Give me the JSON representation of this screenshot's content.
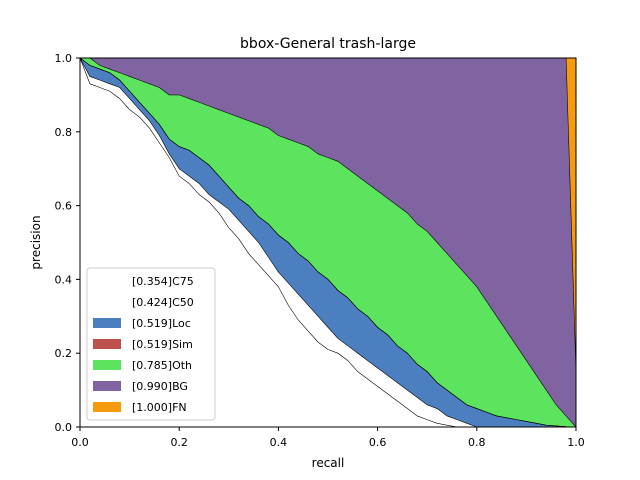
{
  "chart_data": {
    "type": "area",
    "title": "bbox-General trash-large",
    "xlabel": "recall",
    "ylabel": "precision",
    "xlim": [
      0,
      1
    ],
    "ylim": [
      0,
      1
    ],
    "xticks": [
      "0.0",
      "0.2",
      "0.4",
      "0.6",
      "0.8",
      "1.0"
    ],
    "yticks": [
      "0.0",
      "0.2",
      "0.4",
      "0.6",
      "0.8",
      "1.0"
    ],
    "grid": false,
    "legend_position": "lower-left",
    "x": [
      0.0,
      0.02,
      0.04,
      0.06,
      0.08,
      0.1,
      0.12,
      0.14,
      0.16,
      0.18,
      0.2,
      0.22,
      0.24,
      0.26,
      0.28,
      0.3,
      0.32,
      0.34,
      0.36,
      0.38,
      0.4,
      0.42,
      0.44,
      0.46,
      0.48,
      0.5,
      0.52,
      0.54,
      0.56,
      0.58,
      0.6,
      0.62,
      0.64,
      0.66,
      0.68,
      0.7,
      0.72,
      0.74,
      0.76,
      0.78,
      0.8,
      0.82,
      0.84,
      0.86,
      0.88,
      0.9,
      0.92,
      0.94,
      0.96,
      0.98,
      1.0
    ],
    "series": [
      {
        "name": "[0.354]C75",
        "color": "#ffffff",
        "values": [
          1.0,
          0.93,
          0.92,
          0.91,
          0.89,
          0.86,
          0.84,
          0.81,
          0.77,
          0.73,
          0.68,
          0.66,
          0.63,
          0.61,
          0.58,
          0.54,
          0.51,
          0.47,
          0.44,
          0.41,
          0.38,
          0.33,
          0.29,
          0.26,
          0.23,
          0.21,
          0.2,
          0.18,
          0.15,
          0.13,
          0.11,
          0.09,
          0.07,
          0.05,
          0.03,
          0.02,
          0.01,
          0.005,
          0.0,
          0.0,
          0.0,
          0.0,
          0.0,
          0.0,
          0.0,
          0.0,
          0.0,
          0.0,
          0.0,
          0.0,
          0.0
        ]
      },
      {
        "name": "[0.424]C50",
        "color": "#ffffff",
        "values": [
          1.0,
          0.95,
          0.94,
          0.93,
          0.92,
          0.89,
          0.86,
          0.83,
          0.79,
          0.74,
          0.7,
          0.68,
          0.66,
          0.63,
          0.61,
          0.59,
          0.56,
          0.53,
          0.5,
          0.46,
          0.42,
          0.39,
          0.36,
          0.33,
          0.3,
          0.27,
          0.24,
          0.22,
          0.2,
          0.18,
          0.16,
          0.14,
          0.12,
          0.1,
          0.08,
          0.06,
          0.05,
          0.03,
          0.02,
          0.01,
          0.0,
          0.0,
          0.0,
          0.0,
          0.0,
          0.0,
          0.0,
          0.0,
          0.0,
          0.0,
          0.0
        ]
      },
      {
        "name": "[0.519]Loc",
        "color": "#4c7fbf",
        "values": [
          1.0,
          0.98,
          0.97,
          0.96,
          0.94,
          0.91,
          0.88,
          0.85,
          0.82,
          0.78,
          0.76,
          0.75,
          0.73,
          0.71,
          0.68,
          0.65,
          0.62,
          0.6,
          0.57,
          0.55,
          0.52,
          0.5,
          0.47,
          0.45,
          0.42,
          0.4,
          0.37,
          0.35,
          0.32,
          0.3,
          0.27,
          0.25,
          0.22,
          0.2,
          0.17,
          0.15,
          0.12,
          0.1,
          0.08,
          0.06,
          0.05,
          0.04,
          0.03,
          0.025,
          0.02,
          0.015,
          0.01,
          0.005,
          0.003,
          0.001,
          0.0
        ]
      },
      {
        "name": "[0.519]Sim",
        "color": "#c0504d",
        "values": [
          1.0,
          0.98,
          0.97,
          0.96,
          0.94,
          0.91,
          0.88,
          0.85,
          0.82,
          0.78,
          0.76,
          0.75,
          0.73,
          0.71,
          0.68,
          0.65,
          0.62,
          0.6,
          0.57,
          0.55,
          0.52,
          0.5,
          0.47,
          0.45,
          0.42,
          0.4,
          0.37,
          0.35,
          0.32,
          0.3,
          0.27,
          0.25,
          0.22,
          0.2,
          0.17,
          0.15,
          0.12,
          0.1,
          0.08,
          0.06,
          0.05,
          0.04,
          0.03,
          0.025,
          0.02,
          0.015,
          0.01,
          0.005,
          0.003,
          0.001,
          0.0
        ]
      },
      {
        "name": "[0.785]Oth",
        "color": "#5ce45e",
        "values": [
          1.0,
          1.0,
          0.98,
          0.97,
          0.96,
          0.95,
          0.94,
          0.93,
          0.92,
          0.9,
          0.9,
          0.89,
          0.88,
          0.87,
          0.86,
          0.85,
          0.84,
          0.83,
          0.82,
          0.81,
          0.79,
          0.78,
          0.77,
          0.76,
          0.74,
          0.73,
          0.72,
          0.7,
          0.68,
          0.66,
          0.64,
          0.62,
          0.6,
          0.58,
          0.55,
          0.53,
          0.5,
          0.47,
          0.44,
          0.41,
          0.38,
          0.34,
          0.3,
          0.26,
          0.22,
          0.18,
          0.14,
          0.1,
          0.06,
          0.03,
          0.0
        ]
      },
      {
        "name": "[0.990]BG",
        "color": "#8064a2",
        "values": [
          1.0,
          1.0,
          1.0,
          1.0,
          1.0,
          1.0,
          1.0,
          1.0,
          1.0,
          1.0,
          1.0,
          1.0,
          1.0,
          1.0,
          1.0,
          1.0,
          1.0,
          1.0,
          1.0,
          1.0,
          1.0,
          1.0,
          1.0,
          1.0,
          1.0,
          1.0,
          1.0,
          1.0,
          1.0,
          1.0,
          1.0,
          1.0,
          1.0,
          1.0,
          1.0,
          1.0,
          1.0,
          1.0,
          1.0,
          1.0,
          1.0,
          1.0,
          1.0,
          1.0,
          1.0,
          1.0,
          1.0,
          1.0,
          1.0,
          1.0,
          0.15
        ]
      },
      {
        "name": "[1.000]FN",
        "color": "#f79b0e",
        "values": [
          1.0,
          1.0,
          1.0,
          1.0,
          1.0,
          1.0,
          1.0,
          1.0,
          1.0,
          1.0,
          1.0,
          1.0,
          1.0,
          1.0,
          1.0,
          1.0,
          1.0,
          1.0,
          1.0,
          1.0,
          1.0,
          1.0,
          1.0,
          1.0,
          1.0,
          1.0,
          1.0,
          1.0,
          1.0,
          1.0,
          1.0,
          1.0,
          1.0,
          1.0,
          1.0,
          1.0,
          1.0,
          1.0,
          1.0,
          1.0,
          1.0,
          1.0,
          1.0,
          1.0,
          1.0,
          1.0,
          1.0,
          1.0,
          1.0,
          1.0,
          1.0
        ]
      }
    ]
  }
}
